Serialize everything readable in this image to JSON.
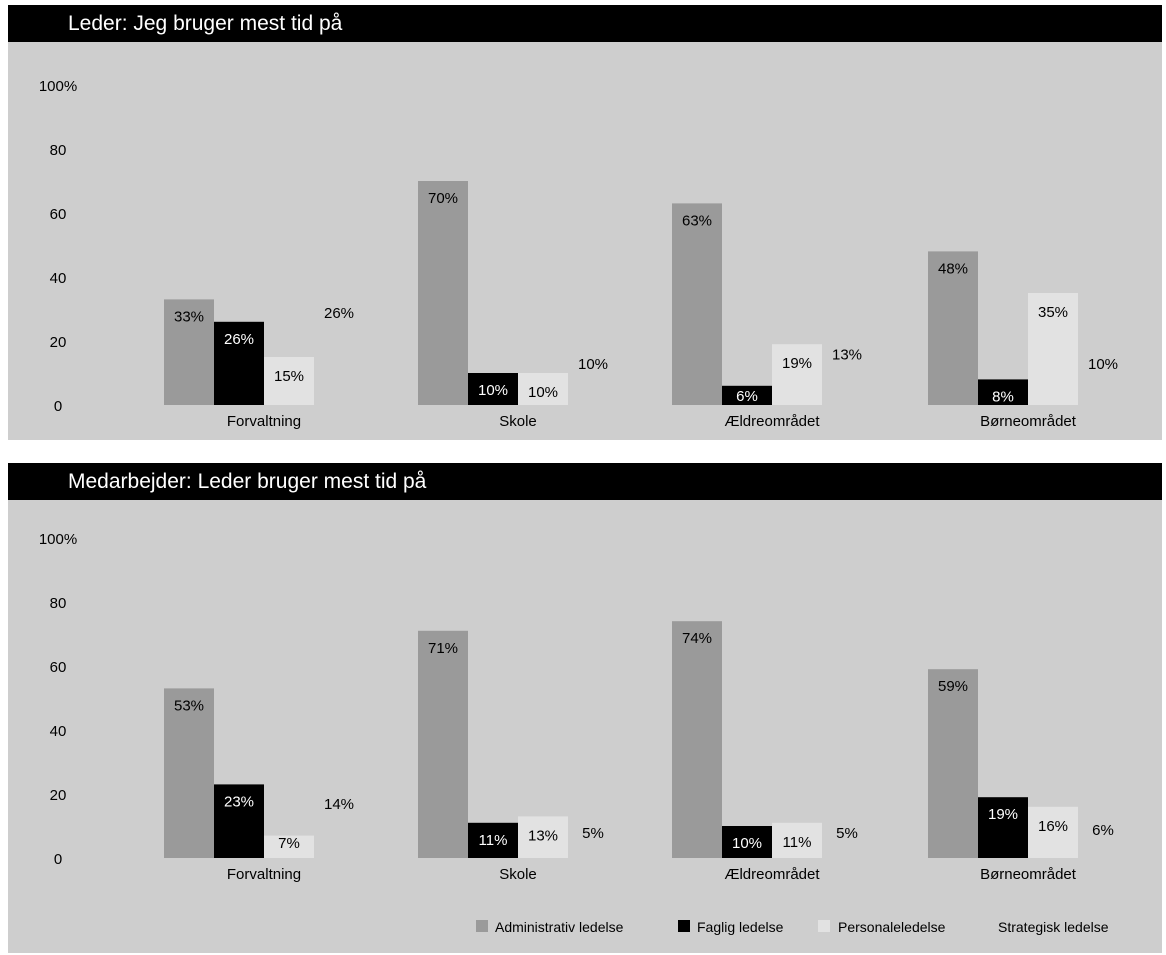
{
  "colors": {
    "Administrativ ledelse": "#9a9a9a",
    "Faglig ledelse": "#000000",
    "Personaleledelse": "#e2e2e2",
    "Strategisk ledelse": "#cecece",
    "panel_background": "#cecece",
    "title_bar": "#000000"
  },
  "legend_entries": [
    "Administrativ ledelse",
    "Faglig ledelse",
    "Personaleledelse",
    "Strategisk ledelse"
  ],
  "chart_data": [
    {
      "type": "bar",
      "title": "Leder: Jeg bruger mest tid på",
      "categories": [
        "Forvaltning",
        "Skole",
        "Ældreområdet",
        "Børneområdet"
      ],
      "y_tick_labels": [
        "0",
        "20",
        "40",
        "60",
        "80",
        "100%"
      ],
      "ylim": [
        0,
        100
      ],
      "grid": false,
      "legend_position": "bottom-right",
      "series": [
        {
          "name": "Administrativ ledelse",
          "values": [
            33,
            70,
            63,
            48
          ],
          "labels": [
            "33%",
            "70%",
            "63%",
            "48%"
          ]
        },
        {
          "name": "Faglig ledelse",
          "values": [
            26,
            10,
            6,
            8
          ],
          "labels": [
            "26%",
            "10%",
            "6%",
            "8%"
          ]
        },
        {
          "name": "Personaleledelse",
          "values": [
            15,
            10,
            19,
            35
          ],
          "labels": [
            "15%",
            "10%",
            "19%",
            "35%"
          ]
        },
        {
          "name": "Strategisk ledelse",
          "values": [
            26,
            10,
            13,
            10
          ],
          "labels": [
            "26%",
            "10%",
            "13%",
            "10%"
          ]
        }
      ]
    },
    {
      "type": "bar",
      "title": "Medarbejder: Leder bruger mest tid på",
      "categories": [
        "Forvaltning",
        "Skole",
        "Ældreområdet",
        "Børneområdet"
      ],
      "y_tick_labels": [
        "0",
        "20",
        "40",
        "60",
        "80",
        "100%"
      ],
      "ylim": [
        0,
        100
      ],
      "grid": false,
      "legend_position": "bottom-right",
      "series": [
        {
          "name": "Administrativ ledelse",
          "values": [
            53,
            71,
            74,
            59
          ],
          "labels": [
            "53%",
            "71%",
            "74%",
            "59%"
          ]
        },
        {
          "name": "Faglig ledelse",
          "values": [
            23,
            11,
            10,
            19
          ],
          "labels": [
            "23%",
            "11%",
            "10%",
            "19%"
          ]
        },
        {
          "name": "Personaleledelse",
          "values": [
            7,
            13,
            11,
            16
          ],
          "labels": [
            "7%",
            "13%",
            "11%",
            "16%"
          ]
        },
        {
          "name": "Strategisk ledelse",
          "values": [
            14,
            5,
            5,
            6
          ],
          "labels": [
            "14%",
            "5%",
            "5%",
            "6%"
          ]
        }
      ]
    }
  ]
}
